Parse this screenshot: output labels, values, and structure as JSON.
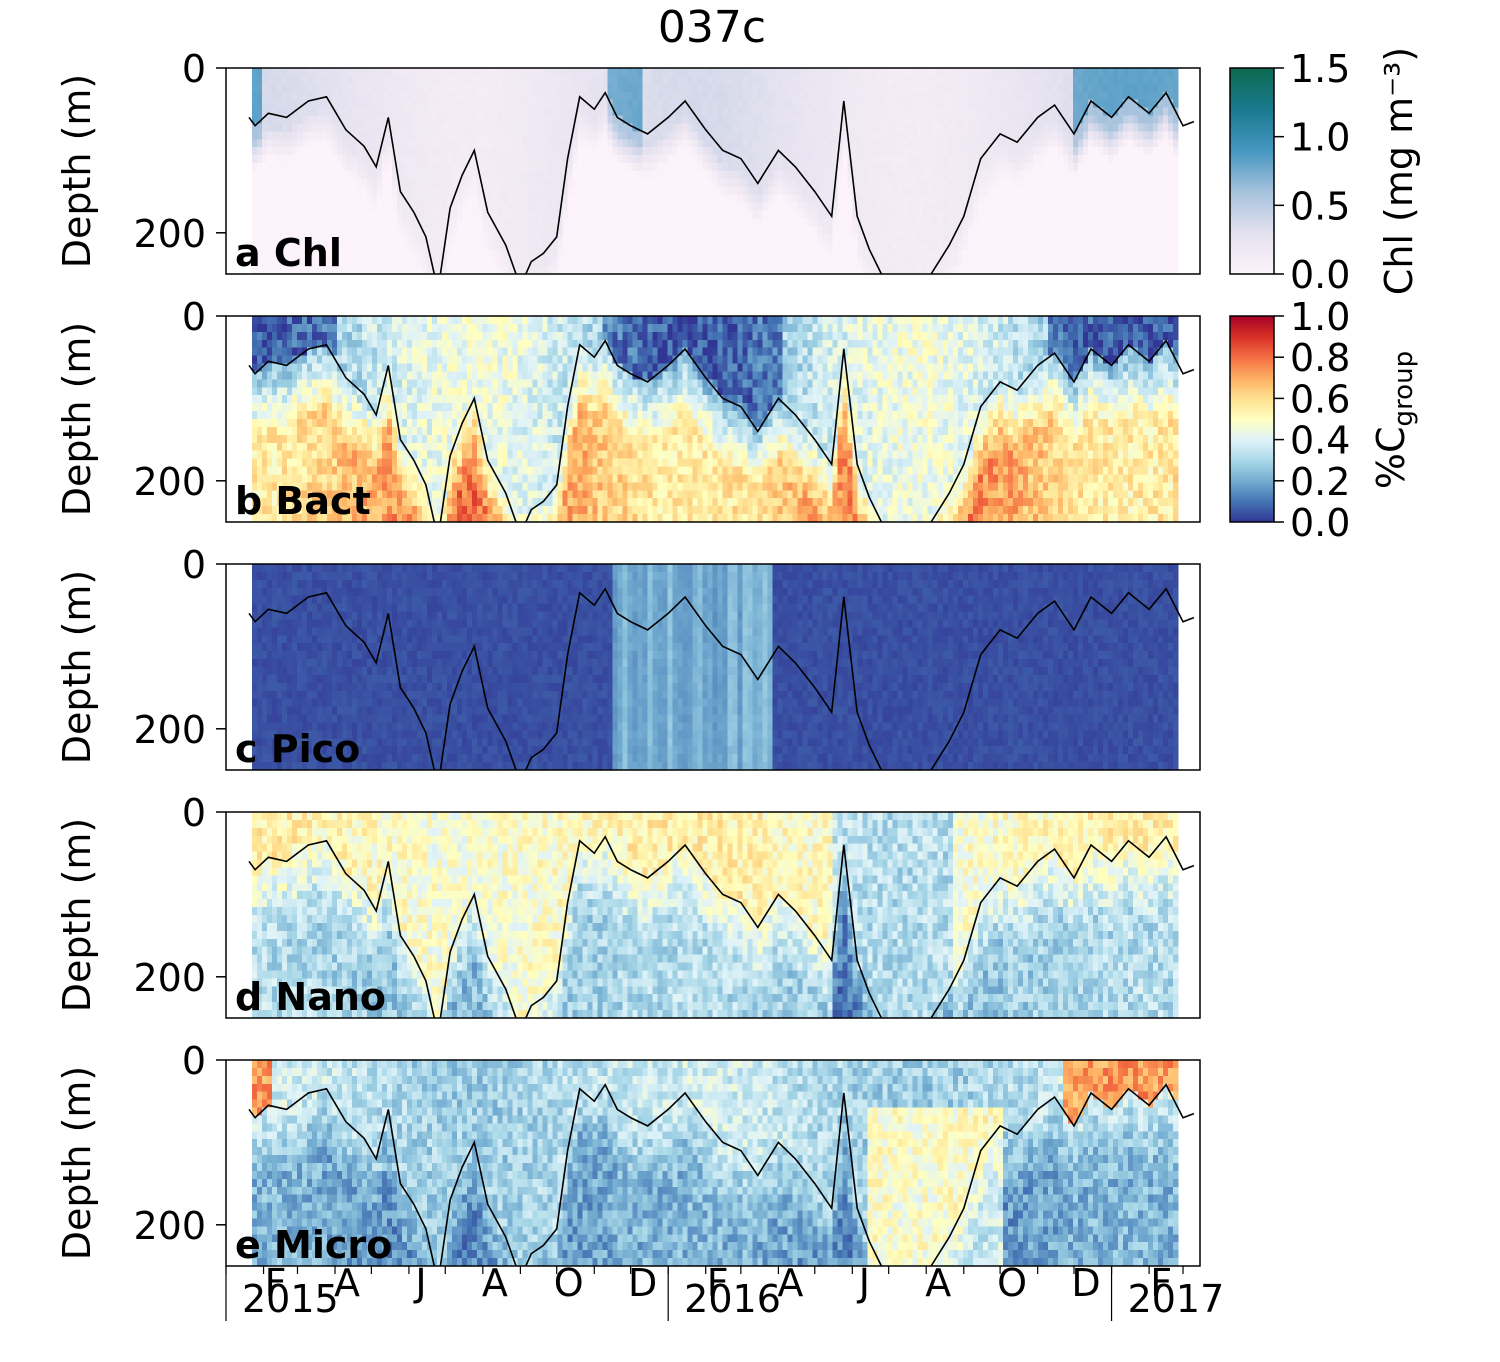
{
  "chart_data": [
    {
      "type": "heatmap",
      "title": "037c",
      "panels": [
        {
          "label": "a Chl",
          "variable": "Chl",
          "ylabel": "Depth (m)",
          "colorbar": "chl"
        },
        {
          "label": "b Bact",
          "variable": "Bact",
          "ylabel": "Depth (m)",
          "colorbar": "group"
        },
        {
          "label": "c Pico",
          "variable": "Pico",
          "ylabel": "Depth (m)"
        },
        {
          "label": "d Nano",
          "variable": "Nano",
          "ylabel": "Depth (m)"
        },
        {
          "label": "e Micro",
          "variable": "Micro",
          "ylabel": "Depth (m)"
        }
      ],
      "y_ticks": [
        "0",
        "200"
      ],
      "ylim": [
        0,
        250
      ],
      "y_inverted": true,
      "xlim": [
        "2015-01-01",
        "2017-03-15"
      ],
      "month_ticks": [
        "F",
        "A",
        "J",
        "A",
        "O",
        "D",
        "F",
        "A",
        "J",
        "A",
        "O",
        "D",
        "F"
      ],
      "year_ticks": [
        "2015",
        "2016",
        "2017"
      ],
      "colorbars": {
        "chl": {
          "label": "Chl (mg m⁻³)",
          "ticks": [
            "0.0",
            "0.5",
            "1.0",
            "1.5"
          ],
          "range": [
            0,
            1.5
          ],
          "colors": [
            "#fdf3fa",
            "#e4e1ef",
            "#a6c2dd",
            "#4596c1",
            "#1a798f",
            "#0c6a4f"
          ]
        },
        "group": {
          "label": "%C",
          "label_sub": "group",
          "ticks": [
            "0.0",
            "0.2",
            "0.4",
            "0.6",
            "0.8",
            "1.0"
          ],
          "range": [
            0,
            1
          ],
          "colors": [
            "#313695",
            "#4575b4",
            "#74add1",
            "#abd9e9",
            "#e0f3f8",
            "#ffffbf",
            "#fee090",
            "#fdae61",
            "#f46d43",
            "#d73027",
            "#a50026"
          ]
        }
      },
      "mld_line": {
        "name": "mixed layer depth",
        "date": [
          "2015-01-20",
          "2015-01-25",
          "2015-02-05",
          "2015-02-20",
          "2015-03-10",
          "2015-03-25",
          "2015-04-10",
          "2015-04-25",
          "2015-05-05",
          "2015-05-15",
          "2015-05-25",
          "2015-06-05",
          "2015-06-15",
          "2015-06-25",
          "2015-07-05",
          "2015-07-15",
          "2015-07-25",
          "2015-08-05",
          "2015-08-20",
          "2015-09-01",
          "2015-09-10",
          "2015-09-20",
          "2015-10-01",
          "2015-10-10",
          "2015-10-20",
          "2015-11-01",
          "2015-11-10",
          "2015-11-20",
          "2015-12-01",
          "2015-12-15",
          "2016-01-01",
          "2016-01-15",
          "2016-02-01",
          "2016-02-15",
          "2016-03-01",
          "2016-03-15",
          "2016-04-01",
          "2016-04-15",
          "2016-05-01",
          "2016-05-15",
          "2016-05-25",
          "2016-06-05",
          "2016-06-15",
          "2016-06-25",
          "2016-07-05",
          "2016-07-15",
          "2016-07-25",
          "2016-08-05",
          "2016-08-20",
          "2016-09-01",
          "2016-09-15",
          "2016-10-01",
          "2016-10-15",
          "2016-11-01",
          "2016-11-15",
          "2016-12-01",
          "2016-12-15",
          "2017-01-01",
          "2017-01-15",
          "2017-02-01",
          "2017-02-15",
          "2017-03-01",
          "2017-03-10"
        ],
        "depth": [
          60,
          70,
          55,
          60,
          40,
          35,
          75,
          95,
          120,
          60,
          150,
          175,
          205,
          270,
          170,
          130,
          100,
          175,
          215,
          265,
          235,
          225,
          205,
          110,
          35,
          50,
          30,
          60,
          70,
          80,
          60,
          40,
          75,
          100,
          110,
          140,
          100,
          120,
          150,
          180,
          40,
          180,
          220,
          250,
          255,
          275,
          270,
          250,
          215,
          180,
          110,
          80,
          90,
          60,
          45,
          80,
          40,
          60,
          35,
          55,
          30,
          70,
          65
        ]
      }
    }
  ]
}
